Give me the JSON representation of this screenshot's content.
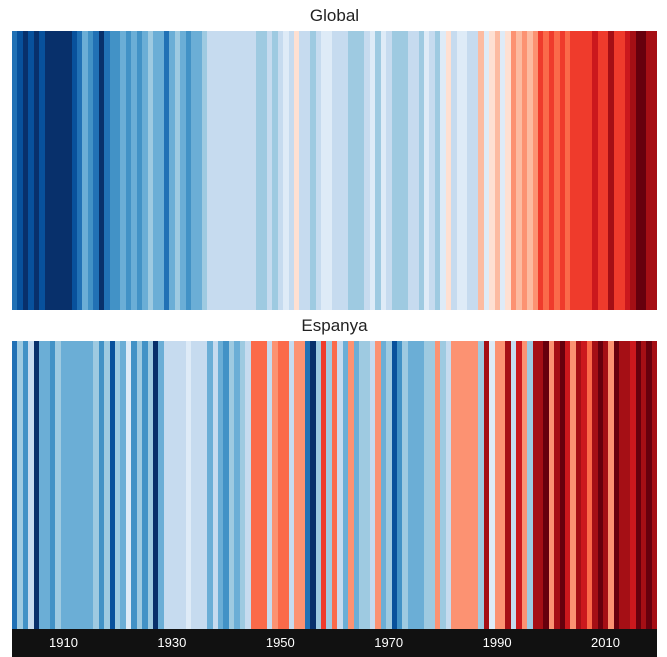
{
  "chart_data": [
    {
      "type": "heatmap",
      "title": "Global",
      "x": {
        "start": 1901,
        "end": 2019
      },
      "anomaly_level": [
        -0.75,
        -0.8,
        -0.9,
        -0.85,
        -0.95,
        -0.8,
        -0.9,
        -1.0,
        -0.95,
        -0.9,
        -0.95,
        -0.85,
        -0.75,
        -0.5,
        -0.6,
        -0.7,
        -0.9,
        -0.75,
        -0.6,
        -0.55,
        -0.45,
        -0.6,
        -0.5,
        -0.55,
        -0.45,
        -0.35,
        -0.45,
        -0.5,
        -0.7,
        -0.45,
        -0.35,
        -0.4,
        -0.6,
        -0.4,
        -0.5,
        -0.3,
        -0.2,
        -0.15,
        -0.2,
        -0.2,
        -0.2,
        -0.2,
        -0.2,
        -0.2,
        -0.2,
        -0.3,
        -0.3,
        -0.25,
        -0.35,
        -0.25,
        -0.1,
        -0.2,
        0.1,
        -0.15,
        -0.25,
        -0.3,
        -0.25,
        -0.1,
        -0.05,
        -0.2,
        -0.15,
        -0.2,
        -0.3,
        -0.3,
        -0.3,
        -0.15,
        -0.05,
        -0.3,
        -0.1,
        -0.2,
        -0.35,
        -0.35,
        -0.3,
        -0.15,
        -0.25,
        -0.3,
        -0.1,
        -0.15,
        -0.35,
        -0.1,
        0.1,
        -0.2,
        -0.1,
        -0.1,
        -0.15,
        -0.2,
        0.2,
        -0.1,
        0.1,
        0.2,
        -0.1,
        0.05,
        0.3,
        0.2,
        0.3,
        0.2,
        0.35,
        0.55,
        0.4,
        0.55,
        0.45,
        0.6,
        0.45,
        0.5,
        0.6,
        0.55,
        0.55,
        0.7,
        0.6,
        0.55,
        0.75,
        0.55,
        0.6,
        0.65,
        0.75,
        0.9,
        0.95,
        0.85,
        0.8
      ],
      "colorscale": [
        "#08306b",
        "#08519c",
        "#2171b5",
        "#4292c6",
        "#6baed6",
        "#9ecae1",
        "#c6dbef",
        "#deebf7",
        "#fee0d2",
        "#fcbba1",
        "#fc9272",
        "#fb6a4a",
        "#ef3b2c",
        "#cb181d",
        "#a50f15",
        "#67000d"
      ]
    },
    {
      "type": "heatmap",
      "title": "Espanya",
      "x": {
        "start": 1901,
        "end": 2019
      },
      "anomaly_level": [
        -0.7,
        -0.3,
        -0.6,
        -0.2,
        -0.95,
        -0.5,
        -0.4,
        -0.55,
        -0.35,
        -0.45,
        -0.5,
        -0.4,
        -0.5,
        -0.4,
        -0.5,
        -0.35,
        -0.55,
        -0.3,
        -0.85,
        -0.3,
        -0.4,
        -0.05,
        -0.6,
        -0.3,
        -0.55,
        -0.3,
        -1.0,
        -0.4,
        -0.25,
        -0.15,
        -0.2,
        -0.15,
        -0.1,
        -0.2,
        -0.15,
        -0.25,
        -0.4,
        -0.2,
        -0.45,
        -0.55,
        -0.3,
        -0.5,
        -0.35,
        -0.15,
        0.45,
        0.45,
        0.45,
        -0.2,
        0.3,
        0.4,
        0.45,
        -0.2,
        0.25,
        0.35,
        -0.7,
        -1.0,
        -0.3,
        0.5,
        -0.35,
        0.4,
        -0.25,
        -0.45,
        0.35,
        -0.4,
        -0.3,
        -0.35,
        -0.25,
        0.25,
        -0.45,
        -0.3,
        -0.85,
        -0.6,
        -0.35,
        -0.45,
        -0.4,
        -0.4,
        -0.3,
        -0.3,
        0.25,
        -0.3,
        -0.25,
        0.3,
        0.3,
        0.35,
        0.3,
        0.35,
        -0.3,
        0.75,
        -0.1,
        0.3,
        0.35,
        0.8,
        -0.2,
        0.7,
        0.3,
        -0.3,
        0.8,
        0.8,
        0.95,
        0.35,
        0.85,
        0.9,
        0.7,
        0.3,
        0.8,
        0.7,
        0.45,
        0.8,
        0.9,
        0.75,
        0.3,
        0.95,
        0.75,
        0.8,
        0.7,
        1.0,
        0.85,
        0.95,
        0.8
      ],
      "colorscale": [
        "#08306b",
        "#08519c",
        "#2171b5",
        "#4292c6",
        "#6baed6",
        "#9ecae1",
        "#c6dbef",
        "#deebf7",
        "#fee0d2",
        "#fcbba1",
        "#fc9272",
        "#fb6a4a",
        "#ef3b2c",
        "#cb181d",
        "#a50f15",
        "#67000d"
      ]
    }
  ],
  "axis": {
    "background": "#111111",
    "ticks": [
      {
        "year": 1910,
        "label": "1910"
      },
      {
        "year": 1930,
        "label": "1930"
      },
      {
        "year": 1950,
        "label": "1950"
      },
      {
        "year": 1970,
        "label": "1970"
      },
      {
        "year": 1990,
        "label": "1990"
      },
      {
        "year": 2010,
        "label": "2010"
      }
    ]
  }
}
